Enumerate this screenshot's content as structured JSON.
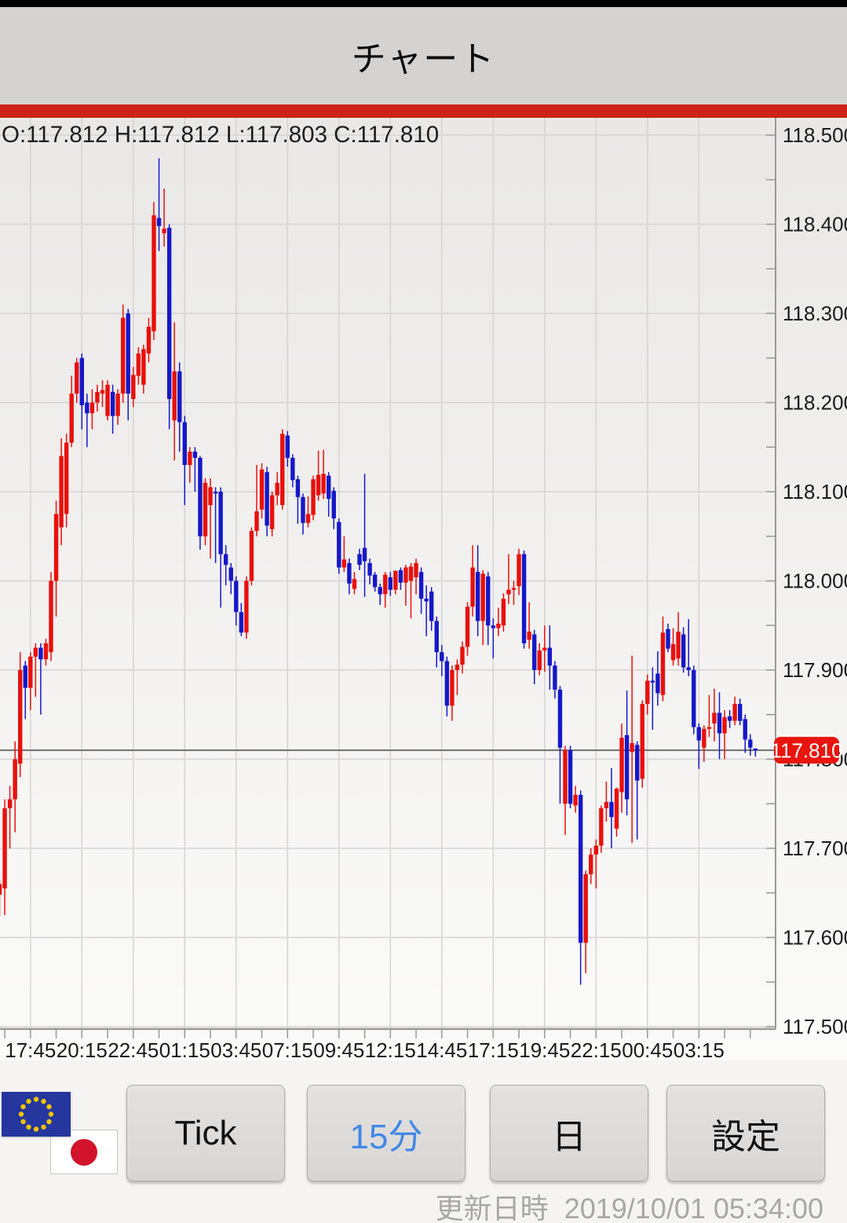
{
  "app": {
    "title": "チャート",
    "status_bar_color": "#000000",
    "header_bg_color": "#d5d3d1",
    "accent_bar_color": "#cc2418"
  },
  "chart": {
    "ohlc_readout": "O:117.812 H:117.812 L:117.803 C:117.810",
    "chart_data": {
      "type": "candlestick",
      "timeframe": "15分",
      "y_axis": {
        "min": 117.5,
        "max": 118.5,
        "tick_step": 0.1,
        "minor_step": 0.05,
        "tick_labels": [
          "118.500",
          "118.400",
          "118.300",
          "118.200",
          "118.100",
          "118.000",
          "117.900",
          "117.800",
          "117.700",
          "117.600",
          "117.500"
        ]
      },
      "x_axis": {
        "tick_labels": [
          "17:45",
          "20:15",
          "22:45",
          "01:15",
          "03:45",
          "07:15",
          "09:45",
          "12:15",
          "14:45",
          "17:15",
          "19:45",
          "22:15",
          "00:45",
          "03:15"
        ],
        "label_candle_indices": [
          6,
          16,
          26,
          36,
          46,
          56,
          66,
          76,
          86,
          96,
          106,
          116,
          126,
          136
        ]
      },
      "current_price": 117.81,
      "current_price_label": "117.810",
      "grid": true,
      "colors": {
        "up": "#e8100c",
        "down": "#1518c8",
        "grid": "#d6d4d3",
        "axis": "#9a9896",
        "current_price_line": "#6e6e6e",
        "price_label_bg": "#e8150d",
        "price_label_text": "#ffffff",
        "tick_text": "#1b1b1b"
      },
      "candles": [
        [
          117.648,
          117.665,
          117.624,
          117.66
        ],
        [
          117.655,
          117.755,
          117.625,
          117.745
        ],
        [
          117.745,
          117.77,
          117.7,
          117.755
        ],
        [
          117.755,
          117.82,
          117.718,
          117.8
        ],
        [
          117.795,
          117.92,
          117.78,
          117.9
        ],
        [
          117.905,
          117.91,
          117.845,
          117.88
        ],
        [
          117.88,
          117.92,
          117.855,
          117.915
        ],
        [
          117.915,
          117.93,
          117.87,
          117.925
        ],
        [
          117.925,
          117.93,
          117.85,
          117.912
        ],
        [
          117.912,
          117.935,
          117.905,
          117.93
        ],
        [
          117.92,
          118.01,
          117.91,
          118.0
        ],
        [
          118.0,
          118.09,
          117.96,
          118.075
        ],
        [
          118.06,
          118.16,
          118.04,
          118.14
        ],
        [
          118.075,
          118.165,
          118.06,
          118.155
        ],
        [
          118.155,
          118.23,
          118.15,
          118.21
        ],
        [
          118.21,
          118.25,
          118.2,
          118.245
        ],
        [
          118.25,
          118.255,
          118.17,
          118.197
        ],
        [
          118.2,
          118.21,
          118.15,
          118.188
        ],
        [
          118.188,
          118.215,
          118.17,
          118.2
        ],
        [
          118.2,
          118.22,
          118.19,
          118.212
        ],
        [
          118.21,
          118.225,
          118.195,
          118.214
        ],
        [
          118.185,
          118.225,
          118.18,
          118.22
        ],
        [
          118.212,
          118.22,
          118.165,
          118.185
        ],
        [
          118.185,
          118.215,
          118.175,
          118.21
        ],
        [
          118.21,
          118.31,
          118.2,
          118.295
        ],
        [
          118.3,
          118.305,
          118.18,
          118.21
        ],
        [
          118.204,
          118.24,
          118.195,
          118.231
        ],
        [
          118.23,
          118.262,
          118.22,
          118.255
        ],
        [
          118.22,
          118.265,
          118.21,
          118.26
        ],
        [
          118.255,
          118.295,
          118.245,
          118.285
        ],
        [
          118.28,
          118.425,
          118.27,
          118.41
        ],
        [
          118.407,
          118.474,
          118.37,
          118.398
        ],
        [
          118.39,
          118.44,
          118.375,
          118.395
        ],
        [
          118.396,
          118.4,
          118.17,
          118.204
        ],
        [
          118.18,
          118.29,
          118.135,
          118.235
        ],
        [
          118.235,
          118.245,
          118.145,
          118.178
        ],
        [
          118.178,
          118.185,
          118.085,
          118.13
        ],
        [
          118.13,
          118.15,
          118.11,
          118.145
        ],
        [
          118.145,
          118.15,
          118.1,
          118.138
        ],
        [
          118.138,
          118.14,
          118.035,
          118.05
        ],
        [
          118.05,
          118.115,
          118.04,
          118.11
        ],
        [
          118.085,
          118.115,
          118.025,
          118.105
        ],
        [
          118.1,
          118.105,
          118.02,
          118.098
        ],
        [
          118.1,
          118.105,
          117.97,
          118.03
        ],
        [
          118.03,
          118.04,
          117.995,
          118.018
        ],
        [
          118.015,
          118.02,
          117.985,
          118.0
        ],
        [
          118.0,
          118.005,
          117.95,
          117.965
        ],
        [
          117.965,
          117.975,
          117.938,
          117.942
        ],
        [
          117.942,
          118.005,
          117.935,
          118.0
        ],
        [
          118.0,
          118.06,
          117.995,
          118.056
        ],
        [
          118.056,
          118.13,
          118.05,
          118.078
        ],
        [
          118.08,
          118.132,
          118.07,
          118.125
        ],
        [
          118.122,
          118.128,
          118.05,
          118.062
        ],
        [
          118.058,
          118.1,
          118.05,
          118.096
        ],
        [
          118.096,
          118.122,
          118.085,
          118.11
        ],
        [
          118.085,
          118.17,
          118.08,
          118.165
        ],
        [
          118.163,
          118.168,
          118.128,
          118.138
        ],
        [
          118.138,
          118.142,
          118.105,
          118.113
        ],
        [
          118.114,
          118.118,
          118.064,
          118.094
        ],
        [
          118.094,
          118.098,
          118.052,
          118.065
        ],
        [
          118.065,
          118.095,
          118.06,
          118.075
        ],
        [
          118.074,
          118.118,
          118.068,
          118.114
        ],
        [
          118.096,
          118.146,
          118.09,
          118.119
        ],
        [
          118.098,
          118.147,
          118.092,
          118.12
        ],
        [
          118.118,
          118.122,
          118.072,
          118.092
        ],
        [
          118.101,
          118.105,
          118.058,
          118.07
        ],
        [
          118.066,
          118.07,
          118.008,
          118.015
        ],
        [
          118.015,
          118.05,
          118.01,
          118.024
        ],
        [
          118.02,
          118.025,
          117.985,
          117.997
        ],
        [
          117.991,
          118.01,
          117.985,
          118.002
        ],
        [
          118.03,
          118.036,
          118.012,
          118.018
        ],
        [
          118.037,
          118.12,
          117.982,
          118.022
        ],
        [
          118.02,
          118.025,
          117.996,
          118.006
        ],
        [
          118.007,
          118.01,
          117.988,
          117.993
        ],
        [
          117.993,
          117.997,
          117.973,
          117.985
        ],
        [
          117.985,
          118.01,
          117.97,
          118.007
        ],
        [
          118.004,
          118.01,
          117.983,
          117.99
        ],
        [
          117.99,
          118.012,
          117.985,
          118.011
        ],
        [
          118.012,
          118.015,
          117.99,
          117.998
        ],
        [
          117.998,
          118.018,
          117.972,
          118.015
        ],
        [
          118.0,
          118.02,
          117.958,
          118.016
        ],
        [
          118.004,
          118.025,
          117.985,
          118.02
        ],
        [
          118.01,
          118.015,
          117.963,
          117.98
        ],
        [
          117.98,
          117.995,
          117.938,
          117.977
        ],
        [
          117.988,
          117.993,
          117.944,
          117.955
        ],
        [
          117.955,
          117.96,
          117.903,
          117.92
        ],
        [
          117.92,
          117.928,
          117.893,
          117.91
        ],
        [
          117.91,
          117.915,
          117.848,
          117.86
        ],
        [
          117.86,
          117.905,
          117.843,
          117.9
        ],
        [
          117.9,
          117.912,
          117.872,
          117.906
        ],
        [
          117.906,
          117.932,
          117.896,
          117.926
        ],
        [
          117.926,
          117.976,
          117.916,
          117.971
        ],
        [
          117.971,
          118.04,
          117.96,
          118.015
        ],
        [
          118.01,
          118.04,
          117.938,
          117.955
        ],
        [
          117.955,
          118.012,
          117.928,
          118.008
        ],
        [
          118.005,
          118.01,
          117.928,
          117.95
        ],
        [
          117.95,
          117.958,
          117.913,
          117.947
        ],
        [
          117.947,
          117.97,
          117.938,
          117.952
        ],
        [
          117.95,
          117.986,
          117.943,
          117.98
        ],
        [
          117.985,
          118.03,
          117.974,
          117.99
        ],
        [
          117.99,
          118.0,
          117.973,
          117.992
        ],
        [
          117.994,
          118.036,
          117.984,
          118.03
        ],
        [
          118.03,
          118.034,
          117.924,
          117.93
        ],
        [
          117.934,
          117.976,
          117.924,
          117.943
        ],
        [
          117.94,
          117.945,
          117.884,
          117.9
        ],
        [
          117.9,
          117.93,
          117.894,
          117.922
        ],
        [
          117.922,
          117.95,
          117.898,
          117.925
        ],
        [
          117.925,
          117.95,
          117.878,
          117.905
        ],
        [
          117.905,
          117.91,
          117.868,
          117.878
        ],
        [
          117.878,
          117.882,
          117.75,
          117.813
        ],
        [
          117.75,
          117.815,
          117.715,
          117.81
        ],
        [
          117.81,
          117.815,
          117.745,
          117.75
        ],
        [
          117.748,
          117.77,
          117.74,
          117.76
        ],
        [
          117.76,
          117.765,
          117.547,
          117.594
        ],
        [
          117.594,
          117.675,
          117.56,
          117.671
        ],
        [
          117.671,
          117.7,
          117.66,
          117.693
        ],
        [
          117.693,
          117.71,
          117.655,
          117.703
        ],
        [
          117.703,
          117.748,
          117.695,
          117.745
        ],
        [
          117.745,
          117.775,
          117.73,
          117.752
        ],
        [
          117.752,
          117.79,
          117.7,
          117.735
        ],
        [
          117.722,
          117.768,
          117.713,
          117.767
        ],
        [
          117.763,
          117.84,
          117.74,
          117.824
        ],
        [
          117.827,
          117.877,
          117.737,
          117.755
        ],
        [
          117.808,
          117.916,
          117.706,
          117.818
        ],
        [
          117.816,
          117.82,
          117.71,
          117.776
        ],
        [
          117.778,
          117.866,
          117.768,
          117.862
        ],
        [
          117.862,
          117.895,
          117.85,
          117.888
        ],
        [
          117.888,
          117.903,
          117.833,
          117.886
        ],
        [
          117.896,
          117.921,
          117.86,
          117.874
        ],
        [
          117.872,
          117.96,
          117.865,
          117.942
        ],
        [
          117.946,
          117.952,
          117.92,
          117.924
        ],
        [
          117.911,
          117.947,
          117.905,
          117.929
        ],
        [
          117.913,
          117.965,
          117.905,
          117.943
        ],
        [
          117.94,
          117.948,
          117.897,
          117.903
        ],
        [
          117.903,
          117.957,
          117.893,
          117.9
        ],
        [
          117.9,
          117.905,
          117.828,
          117.836
        ],
        [
          117.836,
          117.84,
          117.789,
          117.821
        ],
        [
          117.813,
          117.838,
          117.797,
          117.834
        ],
        [
          117.834,
          117.872,
          117.825,
          117.836
        ],
        [
          117.84,
          117.879,
          117.82,
          117.852
        ],
        [
          117.852,
          117.875,
          117.8,
          117.829
        ],
        [
          117.829,
          117.855,
          117.8,
          117.847
        ],
        [
          117.848,
          117.855,
          117.835,
          117.843
        ],
        [
          117.843,
          117.87,
          117.838,
          117.862
        ],
        [
          117.862,
          117.868,
          117.838,
          117.843
        ],
        [
          117.845,
          117.85,
          117.807,
          117.822
        ],
        [
          117.822,
          117.828,
          117.804,
          117.813
        ],
        [
          117.812,
          117.812,
          117.803,
          117.81
        ]
      ]
    }
  },
  "footer": {
    "pair_flag_icons": [
      "eu-flag",
      "japan-flag"
    ],
    "buttons": [
      {
        "label": "Tick",
        "active": false
      },
      {
        "label": "15分",
        "active": true
      },
      {
        "label": "日",
        "active": false
      },
      {
        "label": "設定",
        "active": false
      }
    ],
    "updated_label": "更新日時",
    "updated_value": "2019/10/01 05:34:00"
  }
}
